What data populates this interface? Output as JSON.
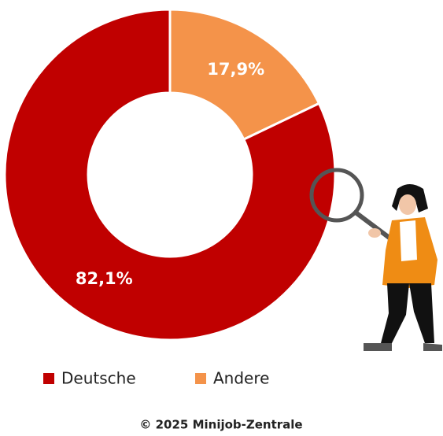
{
  "chart_data": {
    "type": "pie",
    "categories": [
      "Deutsche",
      "Andere"
    ],
    "values": [
      82.1,
      17.9
    ],
    "value_labels": [
      "82,1%",
      "17,9%"
    ],
    "colors": [
      "#c00000",
      "#f4934a"
    ],
    "donut": true,
    "footer": "© 2025 Minijob-Zentrale"
  }
}
